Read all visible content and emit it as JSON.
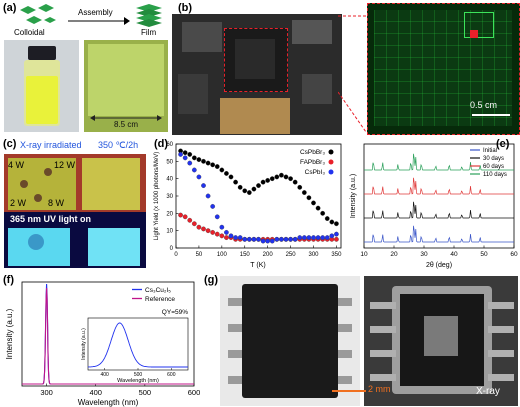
{
  "panel_a": {
    "label": "(a)",
    "colloidal": "Colloidal",
    "assembly": "Assembly",
    "film": "Film",
    "scale": "8.5 cm"
  },
  "panel_b": {
    "label": "(b)",
    "scale": "0.5 cm"
  },
  "panel_c": {
    "label": "(c)",
    "xray_label": "X-ray irradiated",
    "temp_label": "350 ℃/2h",
    "uv_label": "365 nm UV light on",
    "w4": "4 W",
    "w12": "12 W",
    "w2": "2 W",
    "w8": "8 W"
  },
  "panel_d": {
    "label": "(d)",
    "ylabel": "Light Yield (x 1000 photons/MeV)",
    "xlabel": "T (K)",
    "legend": [
      "CsPbBr₃",
      "FAPbBr₃",
      "CsPbI₃"
    ],
    "xticks": [
      "0",
      "50",
      "100",
      "150",
      "200",
      "250",
      "300",
      "350"
    ],
    "yticks": [
      "0",
      "10",
      "20",
      "30",
      "40",
      "50",
      "60"
    ]
  },
  "panel_e": {
    "label": "(e)",
    "ylabel": "Intensity (a.u.)",
    "xlabel": "2θ (deg)",
    "legend": [
      "Initial",
      "30 days",
      "60 days",
      "110 days"
    ],
    "xticks": [
      "10",
      "20",
      "30",
      "40",
      "50",
      "60"
    ]
  },
  "panel_f": {
    "label": "(f)",
    "ylabel": "Intensity (a.u.)",
    "xlabel": "Wavelength (nm)",
    "legend": [
      "Cs₃Cu₂I₅",
      "Reference"
    ],
    "qy": "QY=59%",
    "xticks": [
      "300",
      "400",
      "500",
      "600"
    ],
    "inset_xlabel": "Wavelength (nm)",
    "inset_ylabel": "Intensity (a.u.)",
    "inset_xticks": [
      "400",
      "500",
      "600"
    ]
  },
  "panel_g": {
    "label": "(g)",
    "scale": "2 mm",
    "xray": "X-ray"
  },
  "colors": {
    "cspbbr3": "#000000",
    "fapbbr3": "#e8202a",
    "cspbi3": "#2233ee",
    "initial": "#3a55c8",
    "d30": "#111111",
    "d60": "#e03a3a",
    "d110": "#2aa05a",
    "cs3cu2i5": "#2233ee",
    "reference": "#c0148a"
  },
  "chart_data": [
    {
      "type": "scatter",
      "panel": "d",
      "xlabel": "T (K)",
      "ylabel": "Light Yield (x 1000 photons/MeV)",
      "xlim": [
        0,
        360
      ],
      "ylim": [
        0,
        60
      ],
      "x": [
        10,
        20,
        30,
        40,
        50,
        60,
        70,
        80,
        90,
        100,
        110,
        120,
        130,
        140,
        150,
        160,
        170,
        180,
        190,
        200,
        210,
        220,
        230,
        240,
        250,
        260,
        270,
        280,
        290,
        300,
        310,
        320,
        330,
        340,
        350
      ],
      "series": [
        {
          "name": "CsPbBr₃",
          "values": [
            56,
            55,
            54,
            52,
            51,
            50,
            49,
            48,
            47,
            45,
            43,
            41,
            38,
            35,
            33,
            32,
            34,
            36,
            38,
            39,
            40,
            41,
            42,
            41,
            40,
            38,
            35,
            32,
            29,
            26,
            23,
            20,
            17,
            15,
            14
          ]
        },
        {
          "name": "FAPbBr₃",
          "values": [
            19,
            18,
            16,
            14,
            12,
            11,
            10,
            9,
            8,
            7,
            6,
            6,
            5,
            5,
            5,
            5,
            5,
            5,
            5,
            5,
            5,
            5,
            5,
            5,
            5,
            5,
            5,
            5,
            5,
            5,
            5,
            5,
            5,
            5,
            5
          ]
        },
        {
          "name": "CsPbI₃",
          "values": [
            54,
            52,
            49,
            45,
            41,
            36,
            30,
            24,
            18,
            12,
            9,
            7,
            6,
            6,
            5,
            5,
            5,
            5,
            4,
            4,
            4,
            5,
            5,
            5,
            5,
            5,
            6,
            6,
            6,
            6,
            6,
            6,
            6,
            7,
            8
          ]
        }
      ]
    },
    {
      "type": "line",
      "panel": "e",
      "xlabel": "2θ (deg)",
      "ylabel": "Intensity (a.u.)",
      "xlim": [
        10,
        60
      ],
      "series": [
        {
          "name": "Initial"
        },
        {
          "name": "30 days"
        },
        {
          "name": "60 days"
        },
        {
          "name": "110 days"
        }
      ],
      "peaks_deg": [
        13.1,
        16.2,
        21.3,
        25.6,
        26.6,
        27.2,
        29.1,
        33.9,
        38.4,
        42.6,
        45.5,
        48.7
      ]
    },
    {
      "type": "line",
      "panel": "f",
      "xlabel": "Wavelength (nm)",
      "ylabel": "Intensity (a.u.)",
      "xlim": [
        250,
        600
      ],
      "series": [
        {
          "name": "Cs₃Cu₂I₅",
          "peak_nm": 300
        },
        {
          "name": "Reference",
          "peak_nm": 300
        }
      ],
      "inset": {
        "xlim": [
          350,
          650
        ],
        "peak_nm": 445,
        "xlabel": "Wavelength (nm)",
        "ylabel": "Intensity (a.u.)"
      },
      "annotation": "QY=59%"
    }
  ]
}
